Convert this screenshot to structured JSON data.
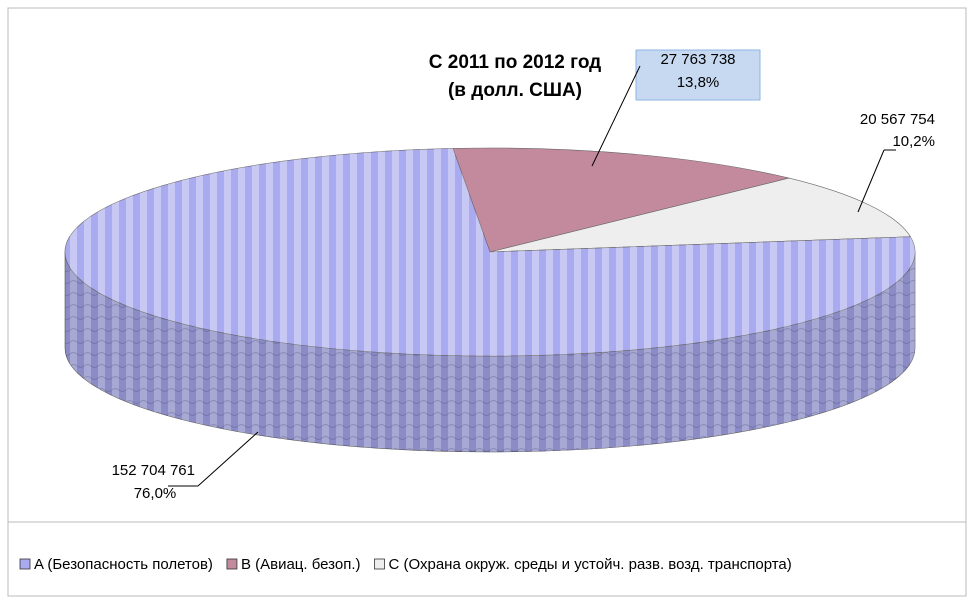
{
  "chart_data": {
    "type": "pie3d",
    "title": "С 2011 по 2012 год",
    "subtitle": "(в долл. США)",
    "categories": [
      "A (Безопасность полетов)",
      "B (Авиац. безоп.)",
      "C (Охрана окруж. среды и устойч. разв. возд. транспорта)"
    ],
    "values": [
      152704761,
      27763738,
      20567754
    ],
    "value_labels": [
      "152 704 761",
      "27 763 738",
      "20 567 754"
    ],
    "percent_labels": [
      "76,0%",
      "13,8%",
      "10,2%"
    ],
    "colors": [
      "#aaaaf0",
      "#c28a9c",
      "#eeeeee"
    ],
    "legend": "bottom"
  }
}
